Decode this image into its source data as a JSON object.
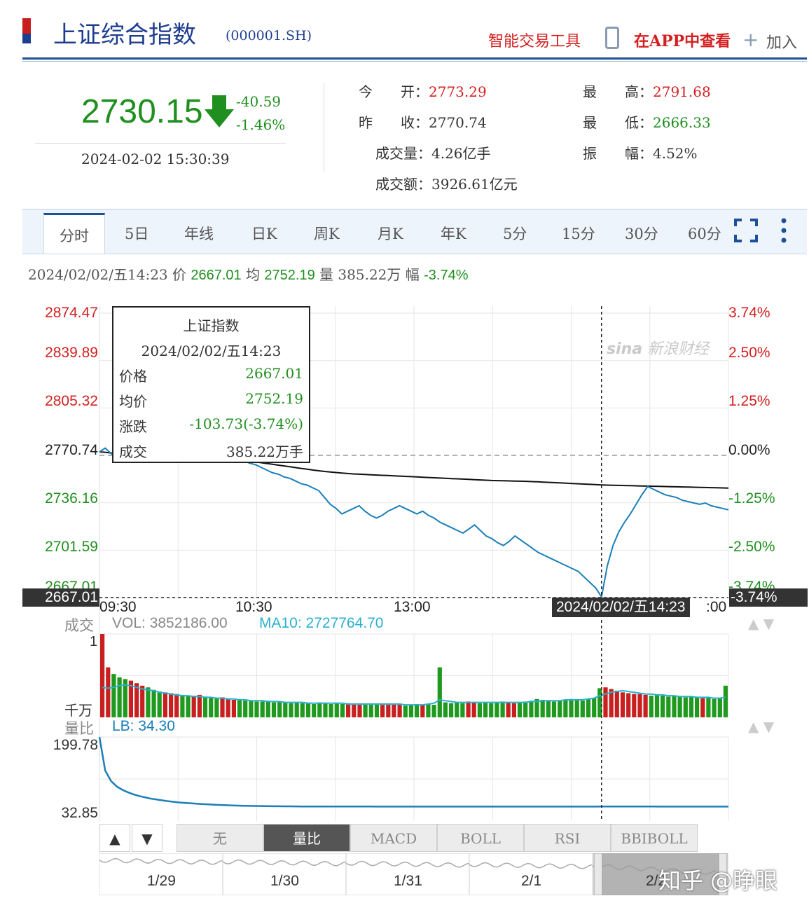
{
  "header": {
    "title": "上证综合指数",
    "code": "(000001.SH)",
    "tool_link": "智能交易工具",
    "app_link": "在APP中查看",
    "add_link": "加入"
  },
  "quote": {
    "price": "2730.15",
    "change": "-40.59",
    "change_pct": "-1.46%",
    "datetime": "2024-02-02 15:30:39",
    "open_label": "今　　开：",
    "open": "2773.29",
    "prev_label": "昨　　收：",
    "prev": "2770.74",
    "volume_label": "成交量：",
    "volume": "4.26亿手",
    "amount_label": "成交额：",
    "amount": "3926.61亿元",
    "high_label": "最　　高：",
    "high": "2791.68",
    "low_label": "最　　低：",
    "low": "2666.33",
    "amp_label": "振　　幅：",
    "amp": "4.52%"
  },
  "tabs": [
    "分时",
    "5日",
    "年线",
    "日K",
    "周K",
    "月K",
    "年K",
    "5分",
    "15分",
    "30分",
    "60分"
  ],
  "info": {
    "date": "2024/02/02/五14:23",
    "price_label": "价",
    "price": "2667.01",
    "avg_label": "均",
    "avg": "2752.19",
    "vol_label": "量",
    "vol": "385.22万",
    "amp_label": "幅",
    "amp": "-3.74%"
  },
  "tooltip": {
    "title": "上证指数",
    "date": "2024/02/02/五14:23",
    "price_label": "价格",
    "price": "2667.01",
    "avg_label": "均价",
    "avg": "2752.19",
    "chg_label": "涨跌",
    "chg": "-103.73(-3.74%)",
    "deal_label": "成交",
    "deal": "385.22万手"
  },
  "watermark": "新浪财经",
  "chart_data": {
    "type": "line",
    "y_labels_left": [
      "2874.47",
      "2839.89",
      "2805.32",
      "2770.74",
      "2736.16",
      "2701.59",
      "2667.01"
    ],
    "y_labels_right": [
      "3.74%",
      "2.50%",
      "1.25%",
      "0.00%",
      "-1.25%",
      "-2.50%",
      "-3.74%"
    ],
    "x_labels": [
      "09:30",
      "10:30",
      "13:00",
      "14:23",
      ":00"
    ],
    "crosshair_price": "2667.01",
    "crosshair_pct": "-3.74%",
    "crosshair_time": "2024/02/02/五14:23",
    "prev_close": 2770.74,
    "ylim": [
      2667.01,
      2874.47
    ],
    "price_series": [
      2773.3,
      2776,
      2772,
      2770,
      2768,
      2769,
      2771,
      2773,
      2772,
      2770,
      2768,
      2769,
      2771,
      2772,
      2770,
      2769,
      2771,
      2772,
      2770,
      2768,
      2766,
      2768,
      2770,
      2771,
      2769,
      2767,
      2765,
      2764,
      2762,
      2760,
      2758,
      2757,
      2755,
      2754,
      2752,
      2750,
      2749,
      2747,
      2745,
      2740,
      2735,
      2732,
      2728,
      2730,
      2732,
      2734,
      2730,
      2727,
      2725,
      2727,
      2730,
      2732,
      2734,
      2732,
      2730,
      2728,
      2730,
      2727,
      2725,
      2722,
      2720,
      2718,
      2716,
      2714,
      2717,
      2720,
      2716,
      2712,
      2710,
      2707,
      2705,
      2708,
      2712,
      2709,
      2706,
      2703,
      2700,
      2698,
      2696,
      2694,
      2692,
      2690,
      2688,
      2686,
      2682,
      2678,
      2674,
      2667.5,
      2690,
      2705,
      2715,
      2722,
      2728,
      2735,
      2742,
      2748,
      2746,
      2744,
      2742,
      2741,
      2740,
      2738,
      2737,
      2736,
      2735,
      2736,
      2734,
      2733,
      2732,
      2731
    ],
    "avg_series": [
      2773.3,
      2773,
      2772.5,
      2772,
      2772,
      2771.8,
      2771.6,
      2771.4,
      2771.2,
      2771.1,
      2771,
      2770.9,
      2770.8,
      2770.7,
      2770.6,
      2770.4,
      2770.2,
      2770,
      2769.8,
      2769.5,
      2769.2,
      2768.8,
      2768.4,
      2768,
      2767.5,
      2767,
      2766.5,
      2766,
      2765.4,
      2764.8,
      2764.2,
      2763.6,
      2763,
      2762.4,
      2761.8,
      2761.2,
      2760.6,
      2760,
      2759.5,
      2759,
      2758.6,
      2758.2,
      2757.8,
      2757.5,
      2757.2,
      2757,
      2756.8,
      2756.6,
      2756.4,
      2756.2,
      2756,
      2755.8,
      2755.6,
      2755.4,
      2755.2,
      2755,
      2754.8,
      2754.6,
      2754.4,
      2754.2,
      2754,
      2753.8,
      2753.6,
      2753.4,
      2753.2,
      2753,
      2752.8,
      2752.6,
      2752.4,
      2752.3,
      2752.2,
      2752.1,
      2752,
      2751.9,
      2751.8,
      2751.6,
      2751.4,
      2751.2,
      2751,
      2750.8,
      2750.6,
      2750.4,
      2750.2,
      2750,
      2749.8,
      2749.6,
      2749.4,
      2749.2,
      2749,
      2748.9,
      2748.8,
      2748.7,
      2748.6,
      2748.5,
      2748.4,
      2748.3,
      2748.2,
      2748.1,
      2748,
      2747.9,
      2747.8,
      2747.7,
      2747.6,
      2747.5,
      2747.4,
      2747.3,
      2747.2,
      2747.1,
      2747,
      2746.9
    ],
    "volume_panel": {
      "label": "成交",
      "vol_text": "VOL: 3852186.00",
      "ma_text": "MA10: 2727764.70",
      "top_label": "1",
      "unit_label": "千万",
      "volumes": [
        10,
        6,
        5.2,
        4.8,
        4.6,
        4.4,
        4.1,
        3.8,
        3.6,
        3.3,
        3.1,
        3.0,
        2.9,
        2.8,
        2.7,
        2.6,
        2.6,
        2.7,
        2.5,
        2.4,
        2.3,
        2.4,
        2.2,
        2.1,
        2.2,
        2.0,
        2.0,
        1.9,
        1.9,
        2.0,
        1.8,
        1.9,
        1.8,
        1.7,
        1.8,
        1.7,
        1.7,
        1.6,
        1.8,
        1.7,
        1.6,
        1.7,
        1.6,
        1.7,
        1.6,
        1.5,
        1.6,
        1.5,
        1.6,
        1.5,
        1.5,
        1.6,
        1.5,
        1.4,
        1.5,
        1.6,
        1.5,
        1.6,
        1.5,
        6,
        1.8,
        1.7,
        1.8,
        1.7,
        1.9,
        1.8,
        1.7,
        1.8,
        1.7,
        1.8,
        1.9,
        1.8,
        1.7,
        1.8,
        1.9,
        2.0,
        2.2,
        2.1,
        2.0,
        1.9,
        2.0,
        2.1,
        2.2,
        2.1,
        2.0,
        2.2,
        2.3,
        3.5,
        3.6,
        3.4,
        3.2,
        3.0,
        2.9,
        2.8,
        2.8,
        2.7,
        2.6,
        2.7,
        2.6,
        2.5,
        2.6,
        2.5,
        2.4,
        2.5,
        2.4,
        2.3,
        2.4,
        2.2,
        2.3,
        3.8
      ],
      "ma10": [
        3.6,
        3.5,
        3.6,
        3.8,
        3.9,
        3.8,
        3.6,
        3.4,
        3.3,
        3.2,
        3.0,
        2.9,
        2.8,
        2.7,
        2.6,
        2.6,
        2.5,
        2.5,
        2.4,
        2.4,
        2.3,
        2.3,
        2.2,
        2.2,
        2.1,
        2.1,
        2.0,
        2.0,
        2.0,
        1.9,
        1.9,
        1.9,
        1.8,
        1.8,
        1.8,
        1.8,
        1.7,
        1.7,
        1.7,
        1.7,
        1.7,
        1.7,
        1.7,
        1.6,
        1.6,
        1.6,
        1.6,
        1.6,
        1.6,
        1.6,
        1.6,
        1.6,
        1.6,
        1.5,
        1.5,
        1.5,
        1.5,
        1.6,
        1.7,
        2.1,
        2.0,
        1.9,
        1.8,
        1.8,
        1.8,
        1.8,
        1.8,
        1.8,
        1.8,
        1.8,
        1.8,
        1.8,
        1.8,
        1.8,
        1.8,
        1.9,
        1.9,
        2.0,
        2.0,
        2.0,
        2.0,
        2.1,
        2.1,
        2.1,
        2.1,
        2.2,
        2.3,
        2.6,
        2.8,
        3.0,
        3.1,
        3.2,
        3.1,
        3.0,
        2.9,
        2.8,
        2.8,
        2.7,
        2.7,
        2.6,
        2.6,
        2.5,
        2.5,
        2.5,
        2.4,
        2.4,
        2.4,
        2.3,
        2.3,
        2.4
      ]
    },
    "lb_panel": {
      "label": "量比",
      "lb_text": "LB: 34.30",
      "top_label": "199.78",
      "mid_label": "32.85",
      "values": [
        199.78,
        120,
        95,
        82,
        74,
        68,
        63,
        59,
        56,
        53,
        51,
        49,
        47,
        45.5,
        44,
        43,
        42,
        41,
        40.2,
        39.5,
        38.8,
        38.2,
        37.6,
        37.1,
        36.7,
        36.3,
        36,
        35.8,
        35.6,
        35.4,
        35.2,
        35.1,
        35,
        34.9,
        34.8,
        34.7,
        34.7,
        34.6,
        34.6,
        34.5,
        34.5,
        34.5,
        34.4,
        34.4,
        34.4,
        34.4,
        34.4,
        34.4,
        34.3,
        34.3,
        34.3,
        34.3,
        34.3,
        34.3,
        34.3,
        34.3,
        34.3,
        34.3,
        34.3,
        34.3,
        34.3,
        34.3,
        34.3,
        34.3,
        34.3,
        34.3,
        34.3,
        34.3,
        34.3,
        34.3,
        34.3,
        34.3,
        34.3,
        34.3,
        34.3,
        34.3,
        34.3,
        34.3,
        34.3,
        34.3,
        34.3,
        34.3,
        34.3,
        34.3,
        34.3,
        34.3,
        34.3,
        34.4,
        34.5,
        34.5,
        34.5,
        34.5,
        34.4,
        34.4,
        34.4,
        34.4,
        34.4,
        34.3,
        34.3,
        34.3,
        34.3,
        34.3,
        34.3,
        34.3,
        34.3,
        34.3,
        34.3,
        34.3,
        34.3,
        34.3
      ]
    },
    "indicator_buttons": [
      "无",
      "量比",
      "MACD",
      "BOLL",
      "RSI",
      "BBIBOLL"
    ],
    "timeline_labels": [
      "1/29",
      "1/30",
      "1/31",
      "2/1",
      "2/2"
    ]
  },
  "credit": "知乎 @睁眼",
  "colors": {
    "up": "#d42020",
    "down": "#1f8f1f",
    "price_line": "#1a7fb8",
    "avg_line": "#111111",
    "brand": "#1d3d8f"
  }
}
